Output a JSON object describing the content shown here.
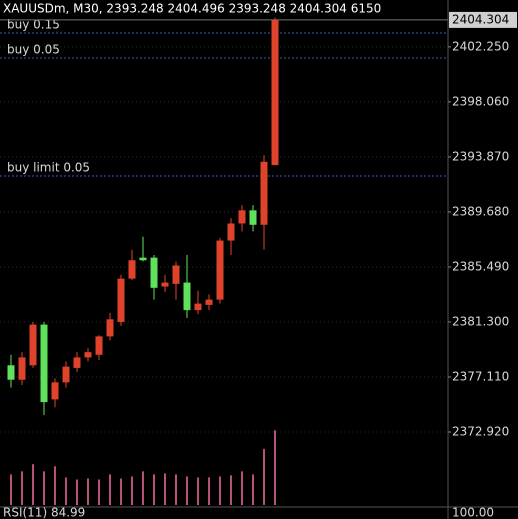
{
  "chart_data": {
    "type": "candlestick",
    "title": "XAUUSDm, M30, 2393.248 2404.496 2393.248 2404.304 6150",
    "candles": [
      {
        "open": 2378.0,
        "high": 2378.8,
        "low": 2376.3,
        "close": 2376.9
      },
      {
        "open": 2376.9,
        "high": 2379.0,
        "low": 2376.5,
        "close": 2378.6
      },
      {
        "open": 2378.0,
        "high": 2381.3,
        "low": 2377.8,
        "close": 2381.1
      },
      {
        "open": 2381.1,
        "high": 2381.3,
        "low": 2374.2,
        "close": 2375.2
      },
      {
        "open": 2375.4,
        "high": 2377.0,
        "low": 2374.8,
        "close": 2376.7
      },
      {
        "open": 2376.7,
        "high": 2378.3,
        "low": 2376.3,
        "close": 2377.9
      },
      {
        "open": 2377.8,
        "high": 2379.0,
        "low": 2377.5,
        "close": 2378.6
      },
      {
        "open": 2378.6,
        "high": 2379.3,
        "low": 2378.3,
        "close": 2379.0
      },
      {
        "open": 2378.8,
        "high": 2380.3,
        "low": 2378.4,
        "close": 2380.2
      },
      {
        "open": 2380.2,
        "high": 2382.0,
        "low": 2379.9,
        "close": 2381.5
      },
      {
        "open": 2381.3,
        "high": 2384.9,
        "low": 2381.0,
        "close": 2384.6
      },
      {
        "open": 2384.6,
        "high": 2386.8,
        "low": 2384.5,
        "close": 2386.0
      },
      {
        "open": 2386.2,
        "high": 2387.8,
        "low": 2385.9,
        "close": 2386.0
      },
      {
        "open": 2386.2,
        "high": 2386.4,
        "low": 2383.0,
        "close": 2383.9
      },
      {
        "open": 2384.0,
        "high": 2384.9,
        "low": 2383.6,
        "close": 2384.3
      },
      {
        "open": 2384.2,
        "high": 2385.9,
        "low": 2383.0,
        "close": 2385.6
      },
      {
        "open": 2384.3,
        "high": 2386.4,
        "low": 2381.6,
        "close": 2382.2
      },
      {
        "open": 2382.2,
        "high": 2383.7,
        "low": 2381.9,
        "close": 2382.7
      },
      {
        "open": 2382.6,
        "high": 2383.4,
        "low": 2382.2,
        "close": 2383.0
      },
      {
        "open": 2383.0,
        "high": 2387.7,
        "low": 2382.7,
        "close": 2387.5
      },
      {
        "open": 2387.5,
        "high": 2389.2,
        "low": 2386.4,
        "close": 2388.8
      },
      {
        "open": 2388.8,
        "high": 2390.2,
        "low": 2388.2,
        "close": 2389.8
      },
      {
        "open": 2389.8,
        "high": 2390.2,
        "low": 2388.2,
        "close": 2388.7
      },
      {
        "open": 2388.7,
        "high": 2394.0,
        "low": 2386.8,
        "close": 2393.5
      },
      {
        "open": 2393.248,
        "high": 2404.496,
        "low": 2393.248,
        "close": 2404.304
      }
    ],
    "volumes": [
      2520,
      2770,
      3360,
      2770,
      3190,
      2270,
      2100,
      2180,
      2100,
      2520,
      2180,
      2350,
      2770,
      2520,
      2600,
      2520,
      2350,
      2270,
      2270,
      2350,
      2440,
      2770,
      2520,
      4620,
      6150
    ],
    "up_color": "#e0432c",
    "down_color": "#5fe35a",
    "volume_color": "#b8507e",
    "ylim": [
      2367.36,
      2405.82
    ],
    "volume_ylim": [
      0,
      7000
    ],
    "yticks": [
      {
        "value": 2402.25,
        "label": "2402.250"
      },
      {
        "value": 2398.06,
        "label": "2398.060"
      },
      {
        "value": 2393.87,
        "label": "2393.870"
      },
      {
        "value": 2389.68,
        "label": "2389.680"
      },
      {
        "value": 2385.49,
        "label": "2385.490"
      },
      {
        "value": 2381.3,
        "label": "2381.300"
      },
      {
        "value": 2377.11,
        "label": "2377.110"
      },
      {
        "value": 2372.92,
        "label": "2372.920"
      }
    ],
    "current_price": 2404.304,
    "orders": [
      {
        "label": "buy 0.15",
        "price": 2403.31
      },
      {
        "label": "buy 0.05",
        "price": 2401.4
      },
      {
        "label": "buy limit 0.05",
        "price": 2392.42
      }
    ],
    "grid": true,
    "rsi_label": "RSI(11) 84.99",
    "rsi_tick": {
      "value": 100,
      "label": "100.00"
    }
  }
}
